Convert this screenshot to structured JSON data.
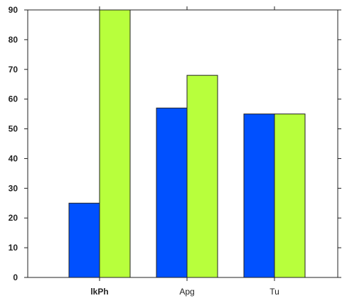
{
  "chart_data": {
    "type": "bar",
    "categories": [
      "lkPh",
      "Apg",
      "Tu"
    ],
    "category_label_bold": [
      true,
      false,
      false
    ],
    "series": [
      {
        "values": [
          25,
          57,
          55
        ],
        "color": "#0050ff"
      },
      {
        "values": [
          90,
          68,
          55
        ],
        "color": "#b8ff3c"
      }
    ],
    "ylim": [
      0,
      90
    ],
    "yticks": [
      0,
      10,
      20,
      30,
      40,
      50,
      60,
      70,
      80,
      90
    ],
    "title": "",
    "xlabel": "",
    "ylabel": "",
    "grid": false
  }
}
